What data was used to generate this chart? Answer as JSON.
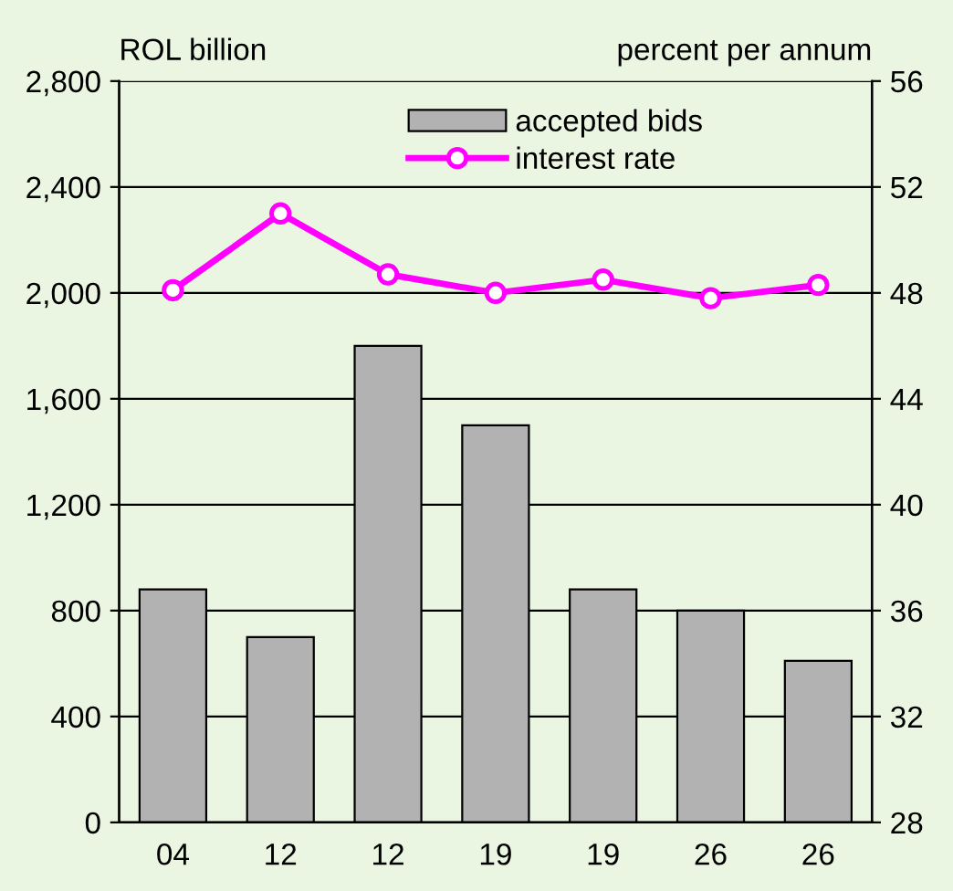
{
  "chart_data": {
    "type": "bar",
    "ylabel": "ROL billion",
    "y2label": "percent per annum",
    "categories": [
      "04",
      "12",
      "12",
      "19",
      "19",
      "26",
      "26"
    ],
    "series": [
      {
        "name": "accepted bids",
        "color": "#b2b2b2",
        "values": [
          880,
          700,
          1800,
          1500,
          880,
          800,
          610
        ]
      },
      {
        "name": "interest rate",
        "type": "line",
        "axis": "y2",
        "color": "#ff00ff",
        "marker": "circle",
        "values": [
          48.1,
          51.0,
          48.7,
          48.0,
          48.5,
          47.8,
          48.3
        ]
      }
    ],
    "ylim": [
      0,
      2800
    ],
    "yticks": [
      0,
      400,
      800,
      {
        "value": 1200,
        "label": "1,200"
      },
      {
        "value": 1600,
        "label": "1,600"
      },
      {
        "value": 2000,
        "label": "2,000"
      },
      {
        "value": 2400,
        "label": "2,400"
      },
      {
        "value": 2800,
        "label": "2,800"
      }
    ],
    "y2lim": [
      28,
      56
    ],
    "y2ticks": [
      28,
      32,
      36,
      40,
      44,
      48,
      52,
      56
    ],
    "grid": "y",
    "legend": "top"
  }
}
